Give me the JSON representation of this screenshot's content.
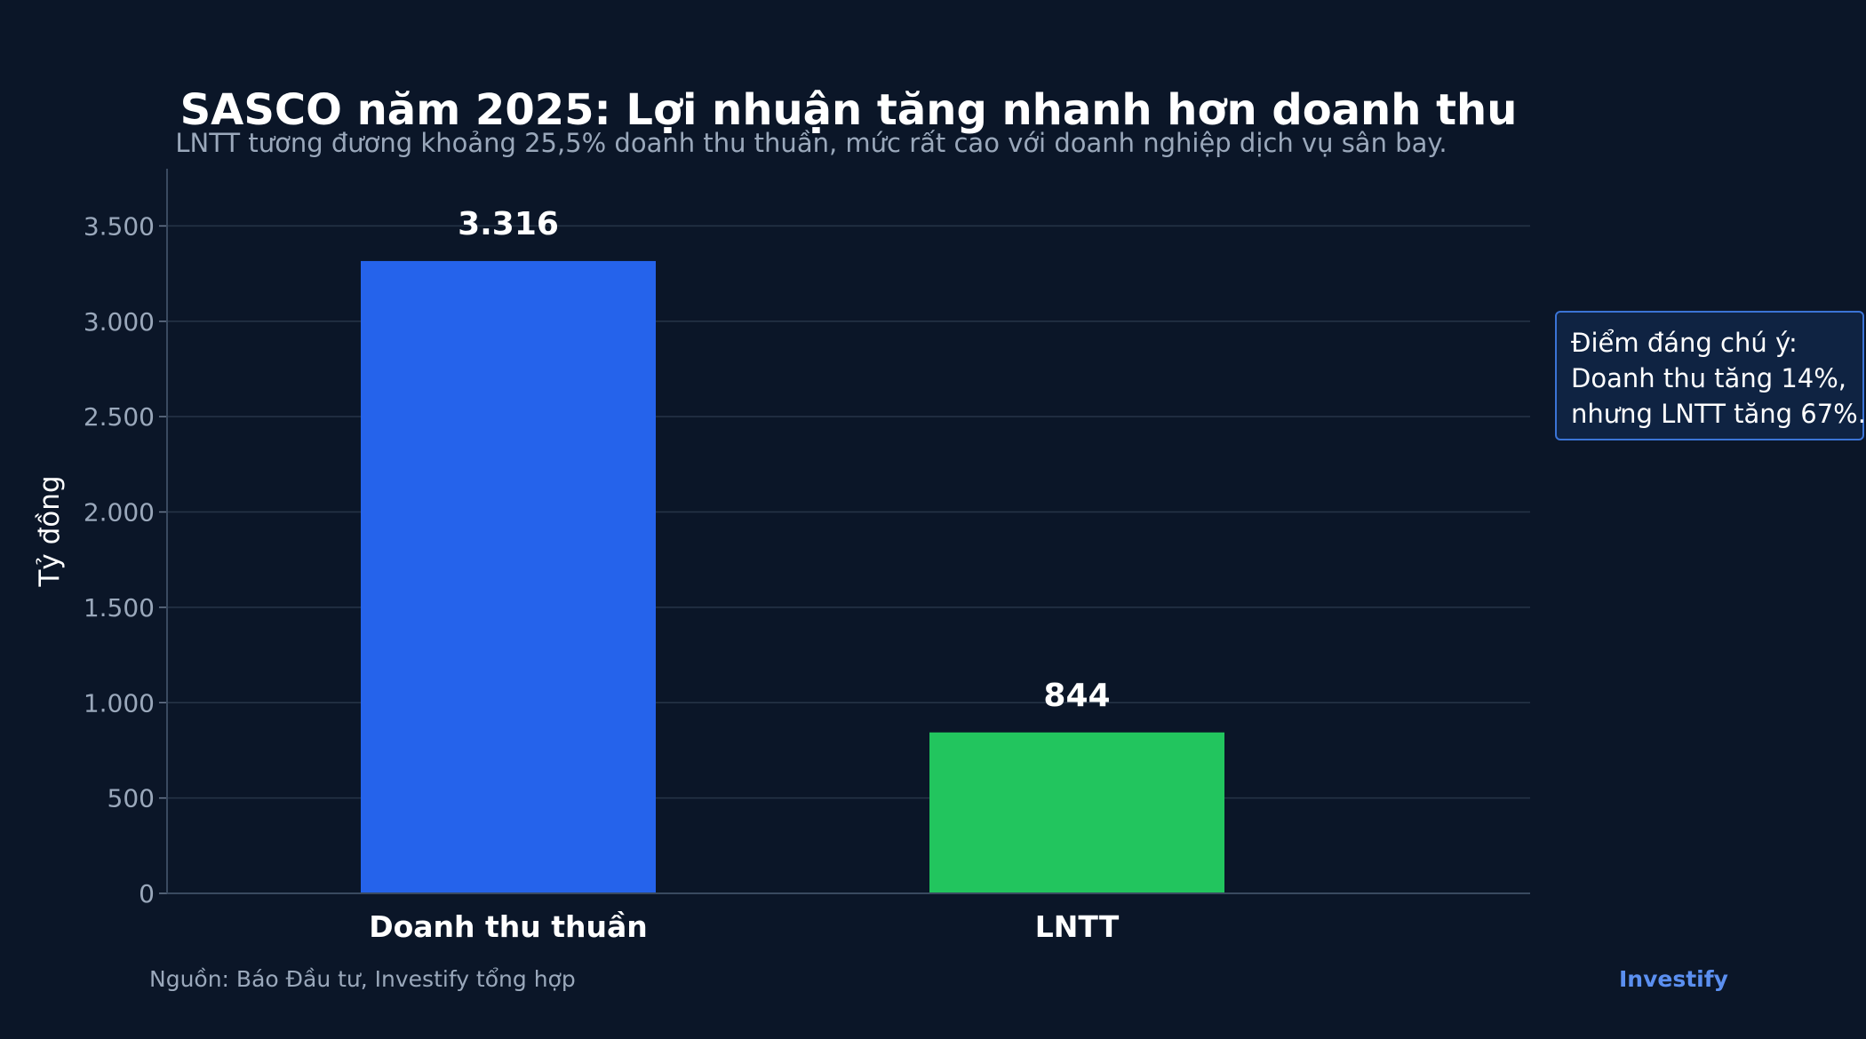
{
  "chart_data": {
    "type": "bar",
    "title": "SASCO năm 2025: Lợi nhuận tăng nhanh hơn doanh thu",
    "subtitle": "LNTT tương đương khoảng 25,5% doanh thu thuần, mức rất cao với doanh nghiệp dịch vụ sân bay.",
    "ylabel": "Tỷ đồng",
    "xlabel": "",
    "categories": [
      "Doanh thu thuần",
      "LNTT"
    ],
    "values": [
      3316,
      844
    ],
    "value_labels": [
      "3.316",
      "844"
    ],
    "colors": [
      "#2563eb",
      "#22c55e"
    ],
    "ylim": [
      0,
      3800
    ],
    "yticks": [
      0,
      500,
      1000,
      1500,
      2000,
      2500,
      3000,
      3500
    ],
    "ytick_labels": [
      "0",
      "500",
      "1.000",
      "1.500",
      "2.000",
      "2.500",
      "3.000",
      "3.500"
    ],
    "grid": true,
    "annotation": {
      "lines": [
        "Điểm đáng chú ý:",
        "Doanh thu tăng 14%,",
        "nhưng LNTT tăng 67%."
      ],
      "placement": "right"
    }
  },
  "footer": {
    "source": "Nguồn: Báo Đầu tư, Investify tổng hợp",
    "brand": "Investify"
  }
}
